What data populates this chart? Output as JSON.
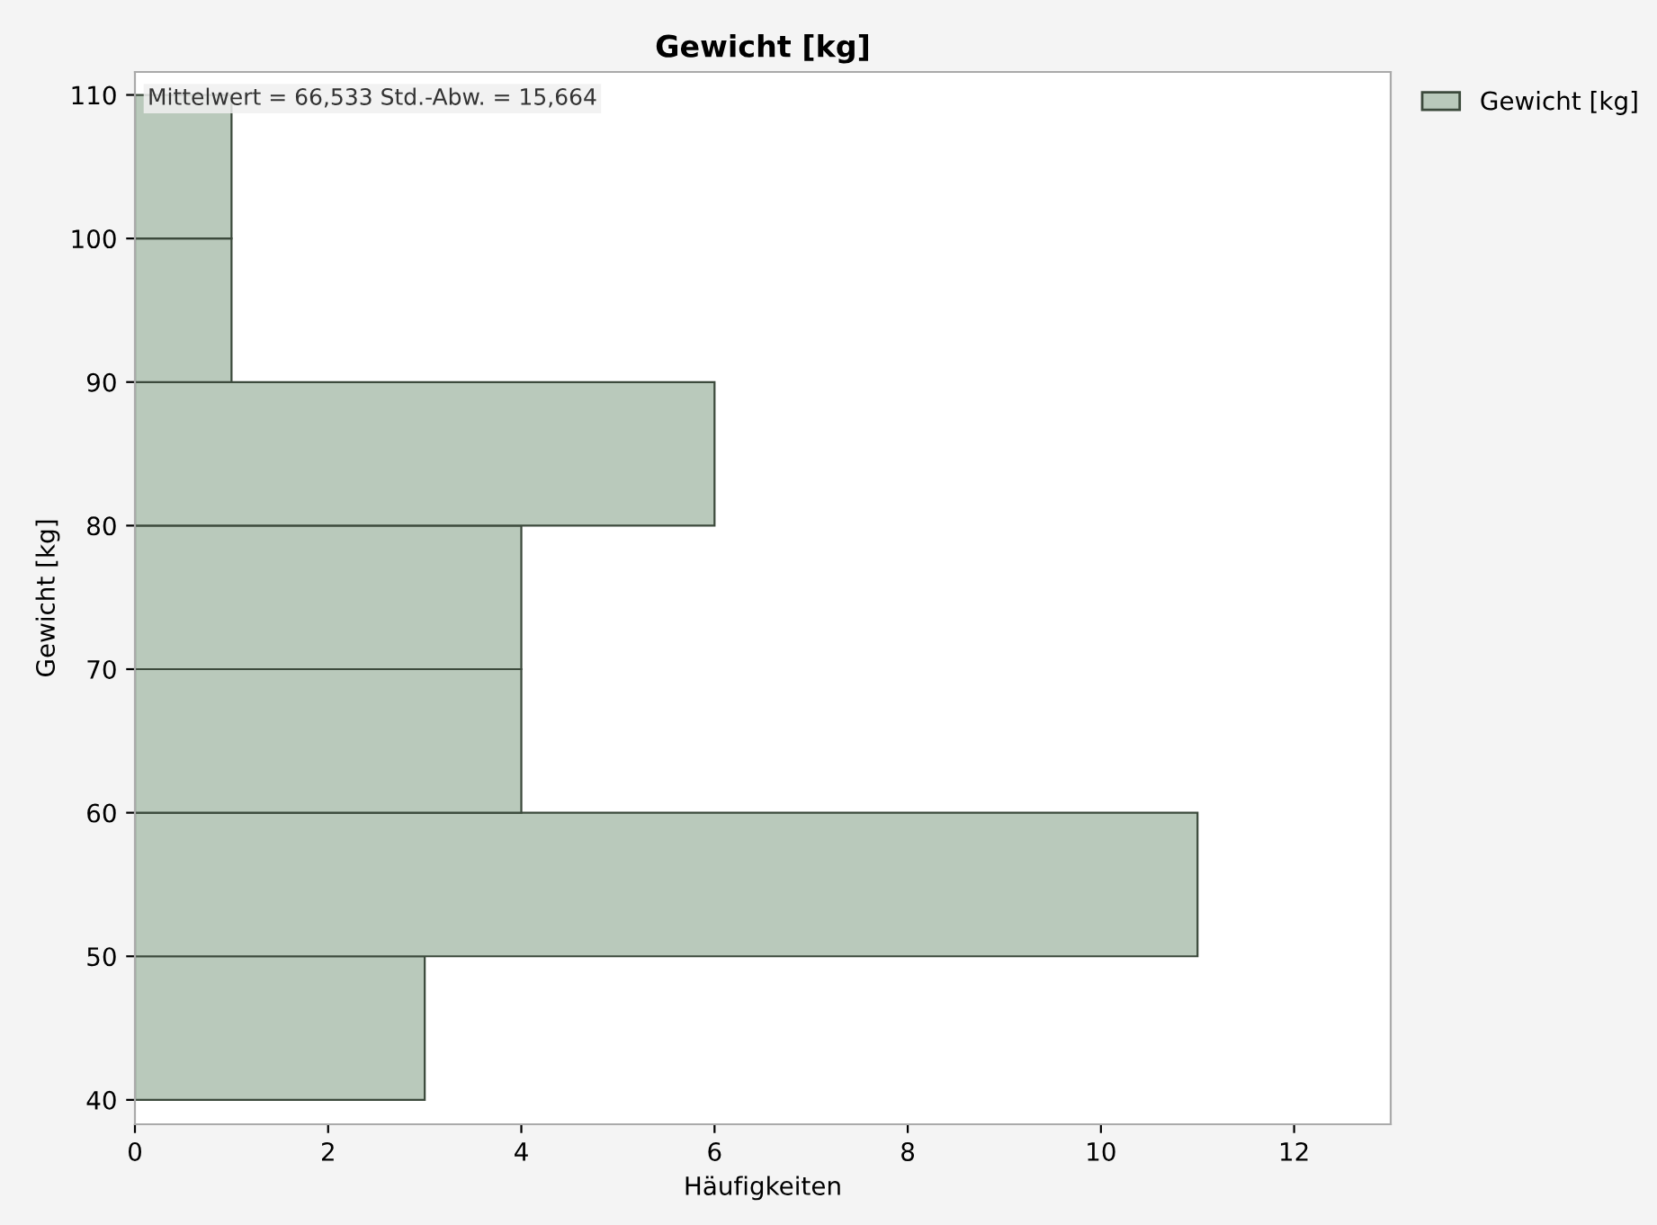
{
  "chart_data": {
    "type": "histogram",
    "orientation": "horizontal",
    "title": "Gewicht [kg]",
    "xlabel": "Häufigkeiten",
    "ylabel": "Gewicht [kg]",
    "bins": [
      40,
      50,
      60,
      70,
      80,
      90,
      100,
      110
    ],
    "series": [
      {
        "name": "Gewicht [kg]",
        "color": "#b9c9bb",
        "values": [
          3,
          11,
          4,
          4,
          6,
          1,
          1
        ]
      }
    ],
    "xlim": [
      0,
      13
    ],
    "xticks": [
      0,
      2,
      4,
      6,
      8,
      10,
      12
    ],
    "ylim": [
      38.3,
      111.6
    ],
    "yticks": [
      40,
      50,
      60,
      70,
      80,
      90,
      100,
      110
    ],
    "annotations": [
      "Mittelwert = 66,533 Std.-Abw. = 15,664"
    ],
    "legend": "right",
    "grid": false
  }
}
